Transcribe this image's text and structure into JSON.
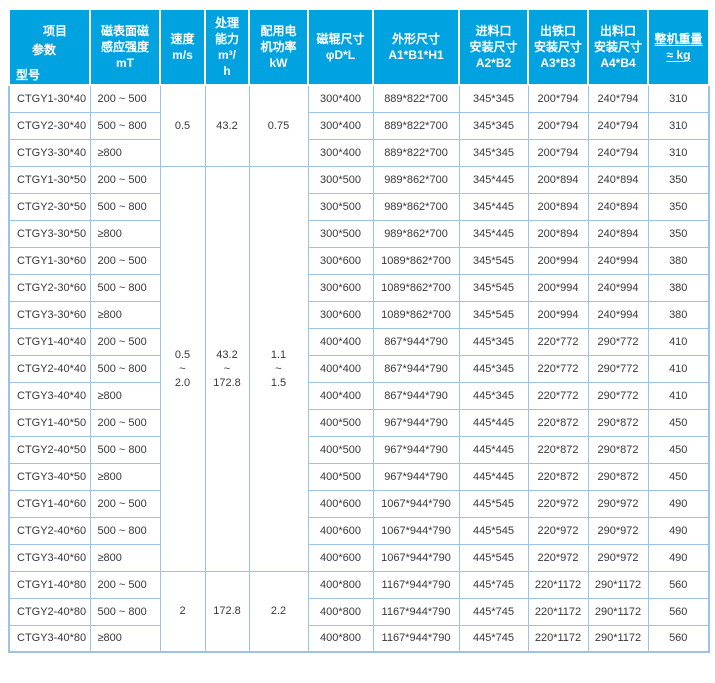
{
  "colors": {
    "header_bg": "#00a2e0",
    "header_text": "#ffffff",
    "grid_border": "#9cc2e5",
    "body_text": "#383838"
  },
  "table": {
    "corner": {
      "top": "项目",
      "mid": "参数",
      "bottom": "型号"
    },
    "headers": [
      {
        "id": "mt",
        "lines": [
          "磁表面磁",
          "感应强度",
          "mT"
        ]
      },
      {
        "id": "speed",
        "lines": [
          "速度",
          "m/s"
        ]
      },
      {
        "id": "capacity",
        "lines": [
          "处理",
          "能力",
          "m³/",
          "h"
        ]
      },
      {
        "id": "power",
        "lines": [
          "配用电",
          "机功率",
          "kW"
        ]
      },
      {
        "id": "roller",
        "lines": [
          "磁辊尺寸",
          "φD*L"
        ]
      },
      {
        "id": "overall",
        "lines": [
          "外形尺寸",
          "A1*B1*H1"
        ]
      },
      {
        "id": "inlet",
        "lines": [
          "进料口",
          "安装尺寸",
          "A2*B2"
        ]
      },
      {
        "id": "iron-outlet",
        "lines": [
          "出铁口",
          "安装尺寸",
          "A3*B3"
        ]
      },
      {
        "id": "outlet",
        "lines": [
          "出料口",
          "安装尺寸",
          "A4*B4"
        ]
      },
      {
        "id": "weight",
        "lines": [
          "整机重量",
          "≈ kg"
        ],
        "underline": true
      }
    ],
    "groups": [
      {
        "merge": {
          "span": 3,
          "speed": "0.5",
          "capacity": "43.2",
          "power": "0.75"
        },
        "rows": [
          {
            "model": "CTGY1-30*40",
            "mt": "200 ~ 500",
            "roller": "300*400",
            "overall": "889*822*700",
            "inlet": "345*345",
            "iron_outlet": "200*794",
            "outlet": "240*794",
            "weight": "310"
          },
          {
            "model": "CTGY2-30*40",
            "mt": "500 ~ 800",
            "roller": "300*400",
            "overall": "889*822*700",
            "inlet": "345*345",
            "iron_outlet": "200*794",
            "outlet": "240*794",
            "weight": "310"
          },
          {
            "model": "CTGY3-30*40",
            "mt": "≥800",
            "roller": "300*400",
            "overall": "889*822*700",
            "inlet": "345*345",
            "iron_outlet": "200*794",
            "outlet": "240*794",
            "weight": "310"
          }
        ]
      },
      {
        "merge": {
          "span": 15,
          "speed": "0.5\n~\n2.0",
          "capacity": "43.2\n~\n172.8",
          "power": "1.1\n~\n1.5"
        },
        "rows": [
          {
            "model": "CTGY1-30*50",
            "mt": "200 ~ 500",
            "roller": "300*500",
            "overall": "989*862*700",
            "inlet": "345*445",
            "iron_outlet": "200*894",
            "outlet": "240*894",
            "weight": "350"
          },
          {
            "model": "CTGY2-30*50",
            "mt": "500 ~ 800",
            "roller": "300*500",
            "overall": "989*862*700",
            "inlet": "345*445",
            "iron_outlet": "200*894",
            "outlet": "240*894",
            "weight": "350"
          },
          {
            "model": "CTGY3-30*50",
            "mt": "≥800",
            "roller": "300*500",
            "overall": "989*862*700",
            "inlet": "345*445",
            "iron_outlet": "200*894",
            "outlet": "240*894",
            "weight": "350"
          }
        ]
      },
      {
        "rows": [
          {
            "model": "CTGY1-30*60",
            "mt": "200 ~ 500",
            "roller": "300*600",
            "overall": "1089*862*700",
            "inlet": "345*545",
            "iron_outlet": "200*994",
            "outlet": "240*994",
            "weight": "380"
          },
          {
            "model": "CTGY2-30*60",
            "mt": "500 ~ 800",
            "roller": "300*600",
            "overall": "1089*862*700",
            "inlet": "345*545",
            "iron_outlet": "200*994",
            "outlet": "240*994",
            "weight": "380"
          },
          {
            "model": "CTGY3-30*60",
            "mt": "≥800",
            "roller": "300*600",
            "overall": "1089*862*700",
            "inlet": "345*545",
            "iron_outlet": "200*994",
            "outlet": "240*994",
            "weight": "380"
          }
        ]
      },
      {
        "rows": [
          {
            "model": "CTGY1-40*40",
            "mt": "200 ~ 500",
            "roller": "400*400",
            "overall": "867*944*790",
            "inlet": "445*345",
            "iron_outlet": "220*772",
            "outlet": "290*772",
            "weight": "410"
          },
          {
            "model": "CTGY2-40*40",
            "mt": "500 ~ 800",
            "roller": "400*400",
            "overall": "867*944*790",
            "inlet": "445*345",
            "iron_outlet": "220*772",
            "outlet": "290*772",
            "weight": "410"
          },
          {
            "model": "CTGY3-40*40",
            "mt": "≥800",
            "roller": "400*400",
            "overall": "867*944*790",
            "inlet": "445*345",
            "iron_outlet": "220*772",
            "outlet": "290*772",
            "weight": "410"
          }
        ]
      },
      {
        "rows": [
          {
            "model": "CTGY1-40*50",
            "mt": "200 ~ 500",
            "roller": "400*500",
            "overall": "967*944*790",
            "inlet": "445*445",
            "iron_outlet": "220*872",
            "outlet": "290*872",
            "weight": "450"
          },
          {
            "model": "CTGY2-40*50",
            "mt": "500 ~ 800",
            "roller": "400*500",
            "overall": "967*944*790",
            "inlet": "445*445",
            "iron_outlet": "220*872",
            "outlet": "290*872",
            "weight": "450"
          },
          {
            "model": "CTGY3-40*50",
            "mt": "≥800",
            "roller": "400*500",
            "overall": "967*944*790",
            "inlet": "445*445",
            "iron_outlet": "220*872",
            "outlet": "290*872",
            "weight": "450"
          }
        ]
      },
      {
        "rows": [
          {
            "model": "CTGY1-40*60",
            "mt": "200 ~ 500",
            "roller": "400*600",
            "overall": "1067*944*790",
            "inlet": "445*545",
            "iron_outlet": "220*972",
            "outlet": "290*972",
            "weight": "490"
          },
          {
            "model": "CTGY2-40*60",
            "mt": "500 ~ 800",
            "roller": "400*600",
            "overall": "1067*944*790",
            "inlet": "445*545",
            "iron_outlet": "220*972",
            "outlet": "290*972",
            "weight": "490"
          },
          {
            "model": "CTGY3-40*60",
            "mt": "≥800",
            "roller": "400*600",
            "overall": "1067*944*790",
            "inlet": "445*545",
            "iron_outlet": "220*972",
            "outlet": "290*972",
            "weight": "490"
          }
        ]
      },
      {
        "merge": {
          "span": 3,
          "speed": "2",
          "capacity": "172.8",
          "power": "2.2"
        },
        "rows": [
          {
            "model": "CTGY1-40*80",
            "mt": "200 ~ 500",
            "roller": "400*800",
            "overall": "1167*944*790",
            "inlet": "445*745",
            "iron_outlet": "220*1172",
            "outlet": "290*1172",
            "weight": "560"
          },
          {
            "model": "CTGY2-40*80",
            "mt": "500 ~ 800",
            "roller": "400*800",
            "overall": "1167*944*790",
            "inlet": "445*745",
            "iron_outlet": "220*1172",
            "outlet": "290*1172",
            "weight": "560"
          },
          {
            "model": "CTGY3-40*80",
            "mt": "≥800",
            "roller": "400*800",
            "overall": "1167*944*790",
            "inlet": "445*745",
            "iron_outlet": "220*1172",
            "outlet": "290*1172",
            "weight": "560"
          }
        ]
      }
    ]
  }
}
